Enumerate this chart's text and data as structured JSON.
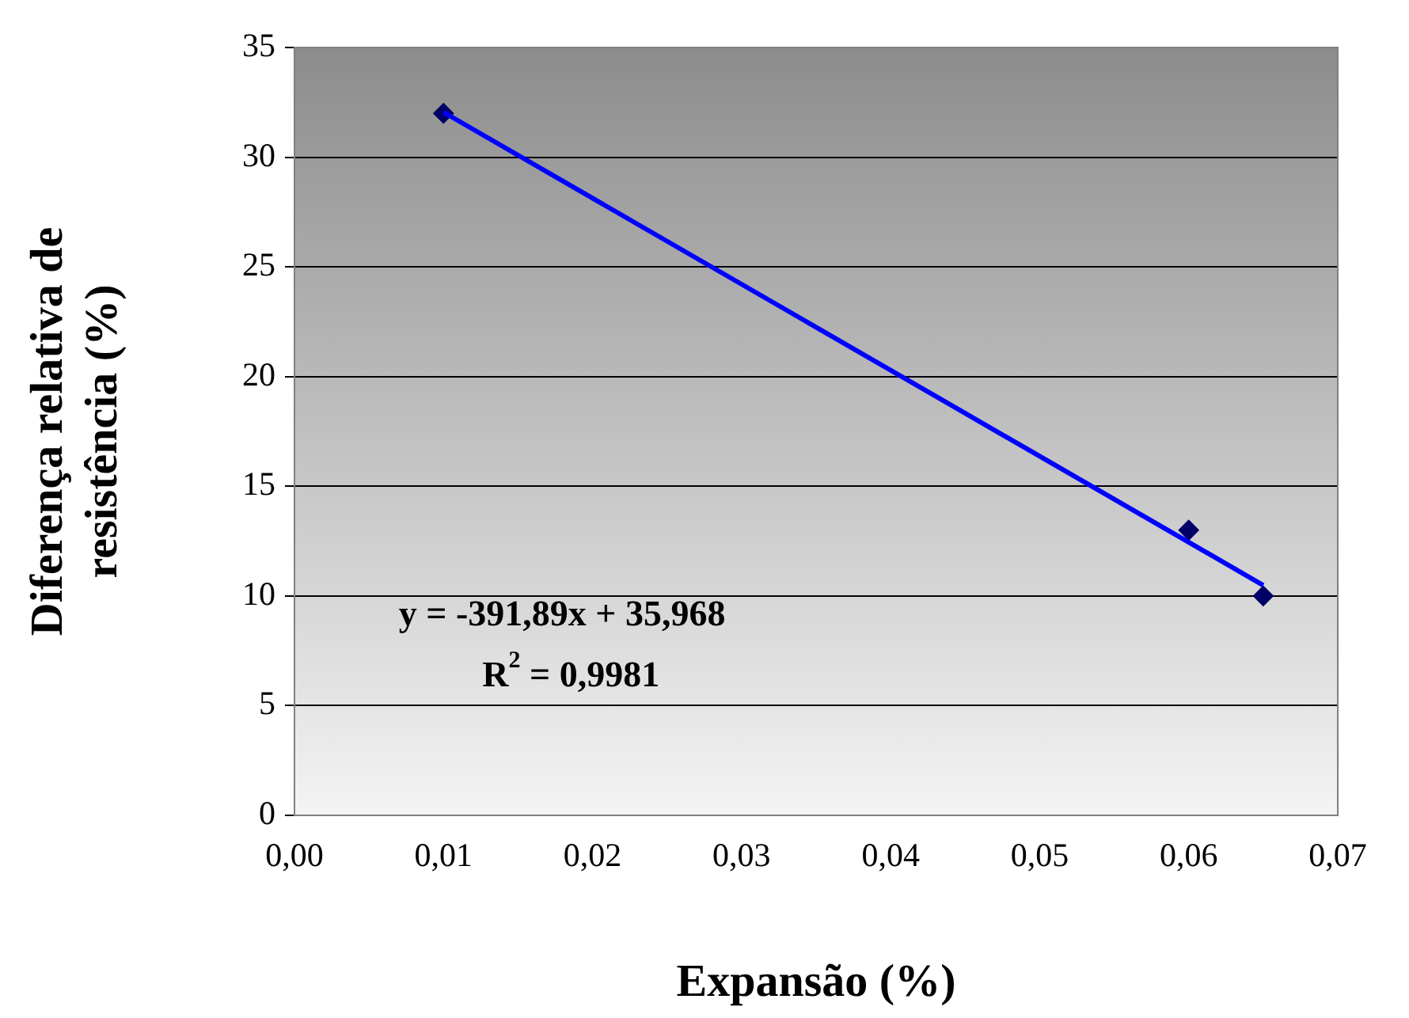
{
  "chart_data": {
    "type": "scatter",
    "xlabel": "Expansão (%)",
    "ylabel": "Diferença relativa de resistência (%)",
    "xlim": [
      0,
      0.07
    ],
    "xticks": [
      {
        "value": 0,
        "label": "0,00"
      },
      {
        "value": 0.01,
        "label": "0,01"
      },
      {
        "value": 0.02,
        "label": "0,02"
      },
      {
        "value": 0.03,
        "label": "0,03"
      },
      {
        "value": 0.04,
        "label": "0,04"
      },
      {
        "value": 0.05,
        "label": "0,05"
      },
      {
        "value": 0.06,
        "label": "0,06"
      },
      {
        "value": 0.07,
        "label": "0,07"
      }
    ],
    "ylim": [
      0,
      35
    ],
    "yticks": [
      0,
      5,
      10,
      15,
      20,
      25,
      30,
      35
    ],
    "series": [
      {
        "type": "scatter",
        "color": "#000066",
        "x": [
          0.01,
          0.06,
          0.065
        ],
        "values": [
          32,
          13,
          10
        ],
        "marker": "diamond"
      },
      {
        "type": "line",
        "color": "#0000ff",
        "x": [
          0.01,
          0.065
        ],
        "values": [
          32.05,
          10.49
        ],
        "marker": "none",
        "line_style": "solid"
      }
    ],
    "annotations": [
      "y = -391,89x + 35,968",
      "R$^{2}$ = 0,9981"
    ],
    "grid": "y",
    "legend": false
  }
}
